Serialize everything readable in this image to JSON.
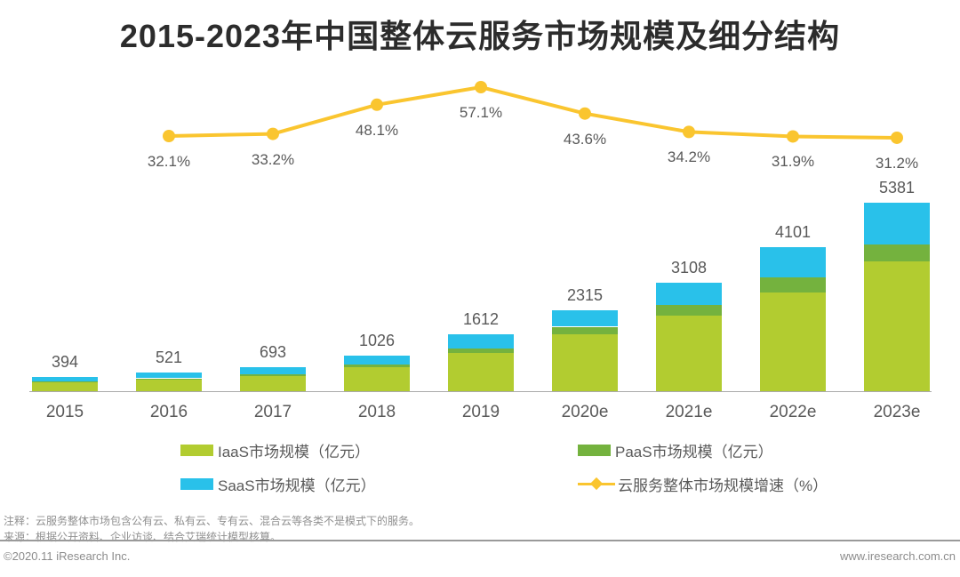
{
  "title": "2015-2023年中国整体云服务市场规模及细分结构",
  "chart_data": {
    "type": "bar",
    "subtype": "stacked-bar-with-growth-line",
    "title": "2015-2023年中国整体云服务市场规模及细分结构",
    "categories": [
      "2015",
      "2016",
      "2017",
      "2018",
      "2019",
      "2020e",
      "2021e",
      "2022e",
      "2023e"
    ],
    "totals": [
      394,
      521,
      693,
      1026,
      1612,
      2315,
      3108,
      4101,
      5381
    ],
    "totals_unit": "亿元",
    "grid": false,
    "legend_position": "bottom",
    "bar_series": [
      {
        "key": "iaas",
        "name": "IaaS市场规模（亿元）",
        "color": "#b2cc30",
        "values_estimated_from_pixels": true,
        "values": [
          242,
          328,
          428,
          690,
          1103,
          1636,
          2158,
          2822,
          3713
        ]
      },
      {
        "key": "paas",
        "name": "PaaS市场规模（亿元）",
        "color": "#74b23e",
        "values_estimated_from_pixels": true,
        "values": [
          32,
          40,
          49,
          76,
          104,
          204,
          295,
          418,
          484
        ]
      },
      {
        "key": "saas",
        "name": "SaaS市场规模（亿元）",
        "color": "#29c1ea",
        "values_estimated_from_pixels": true,
        "values": [
          120,
          153,
          216,
          260,
          405,
          475,
          655,
          861,
          1184
        ]
      }
    ],
    "line_series": {
      "key": "growth",
      "name": "云服务整体市场规模增速（%）",
      "color": "#fac52f",
      "start_category_index": 1,
      "categories": [
        "2016",
        "2017",
        "2018",
        "2019",
        "2020e",
        "2021e",
        "2022e",
        "2023e"
      ],
      "values": [
        32.1,
        33.2,
        48.1,
        57.1,
        43.6,
        34.2,
        31.9,
        31.2
      ],
      "labels": [
        "32.1%",
        "33.2%",
        "48.1%",
        "57.1%",
        "43.6%",
        "34.2%",
        "31.9%",
        "31.2%"
      ]
    }
  },
  "legend": {
    "items": [
      {
        "key": "iaas",
        "marker": "swatch",
        "color": "#b2cc30",
        "label": "IaaS市场规模（亿元）",
        "row": 0,
        "col": 0
      },
      {
        "key": "paas",
        "marker": "swatch",
        "color": "#74b23e",
        "label": "PaaS市场规模（亿元）",
        "row": 0,
        "col": 1
      },
      {
        "key": "saas",
        "marker": "swatch",
        "color": "#29c1ea",
        "label": "SaaS市场规模（亿元）",
        "row": 1,
        "col": 0
      },
      {
        "key": "growth",
        "marker": "line",
        "color": "#fac52f",
        "label": "云服务整体市场规模增速（%）",
        "row": 1,
        "col": 1
      }
    ]
  },
  "notes": {
    "annotation": "注释：云服务整体市场包含公有云、私有云、专有云、混合云等各类不是模式下的服务。",
    "source": "来源：根据公开资料、企业访谈、结合艾瑞统计模型核算。"
  },
  "footer": {
    "copyright": "©2020.11 iResearch Inc.",
    "website": "www.iresearch.com.cn"
  },
  "colors": {
    "iaas": "#b2cc30",
    "paas": "#74b23e",
    "saas": "#29c1ea",
    "growth_line": "#fac52f",
    "title_text": "#2c2c2c",
    "label_text": "#595959",
    "note_text": "#8f8f8f",
    "axis_line": "#aaaaaa",
    "divider": "#9a9a9a",
    "background": "#ffffff"
  }
}
